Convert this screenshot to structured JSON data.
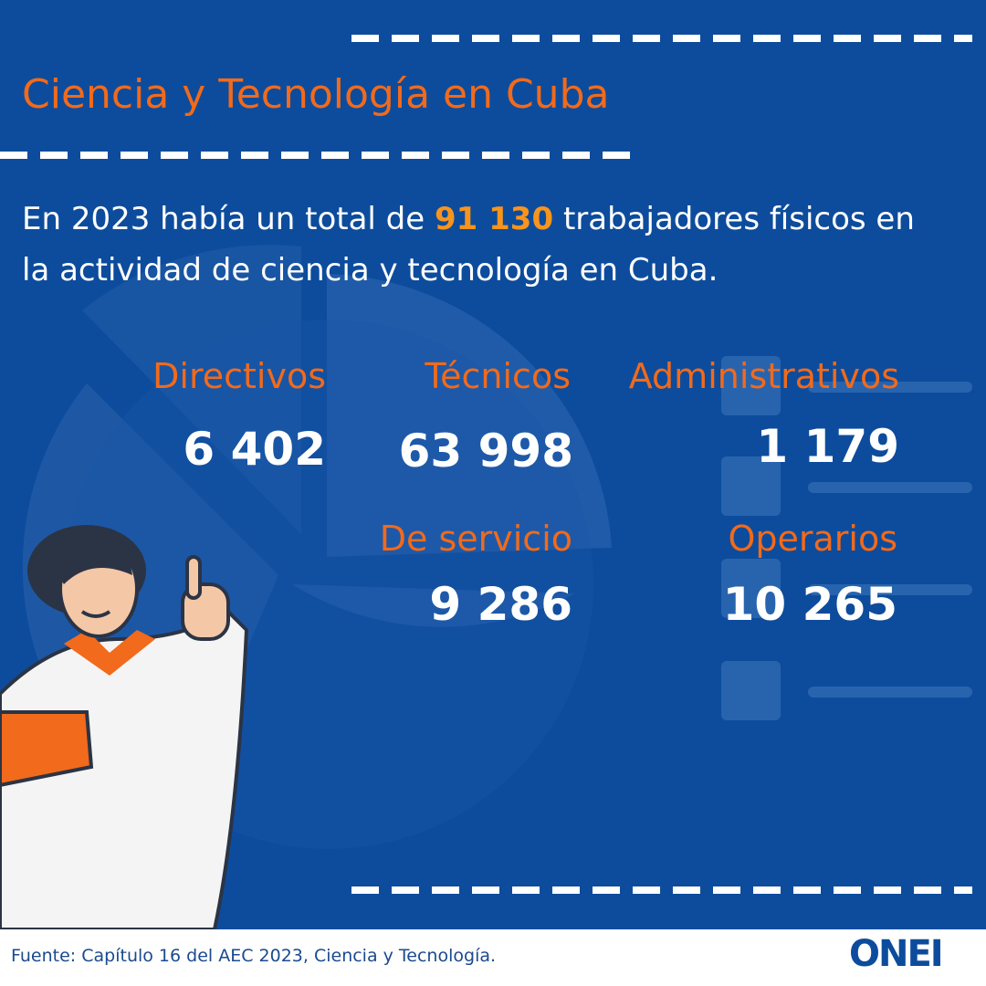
{
  "header": {
    "title": "Ciencia y Tecnología en Cuba"
  },
  "intro": {
    "before": "En 2023 había un total de",
    "highlight": "91 130",
    "after": "trabajadores físicos en la actividad de ciencia y tecnología en Cuba."
  },
  "stats": [
    {
      "label": "Directivos",
      "value": "6 402"
    },
    {
      "label": "Técnicos",
      "value": "63 998"
    },
    {
      "label": "Administrativos",
      "value": "1 179"
    },
    {
      "label": "De servicio",
      "value": "9 286"
    },
    {
      "label": "Operarios",
      "value": "10 265"
    }
  ],
  "footer": {
    "source": "Fuente: Capítulo 16 del AEC 2023, Ciencia y Tecnología.",
    "logo": "ONEI"
  }
}
